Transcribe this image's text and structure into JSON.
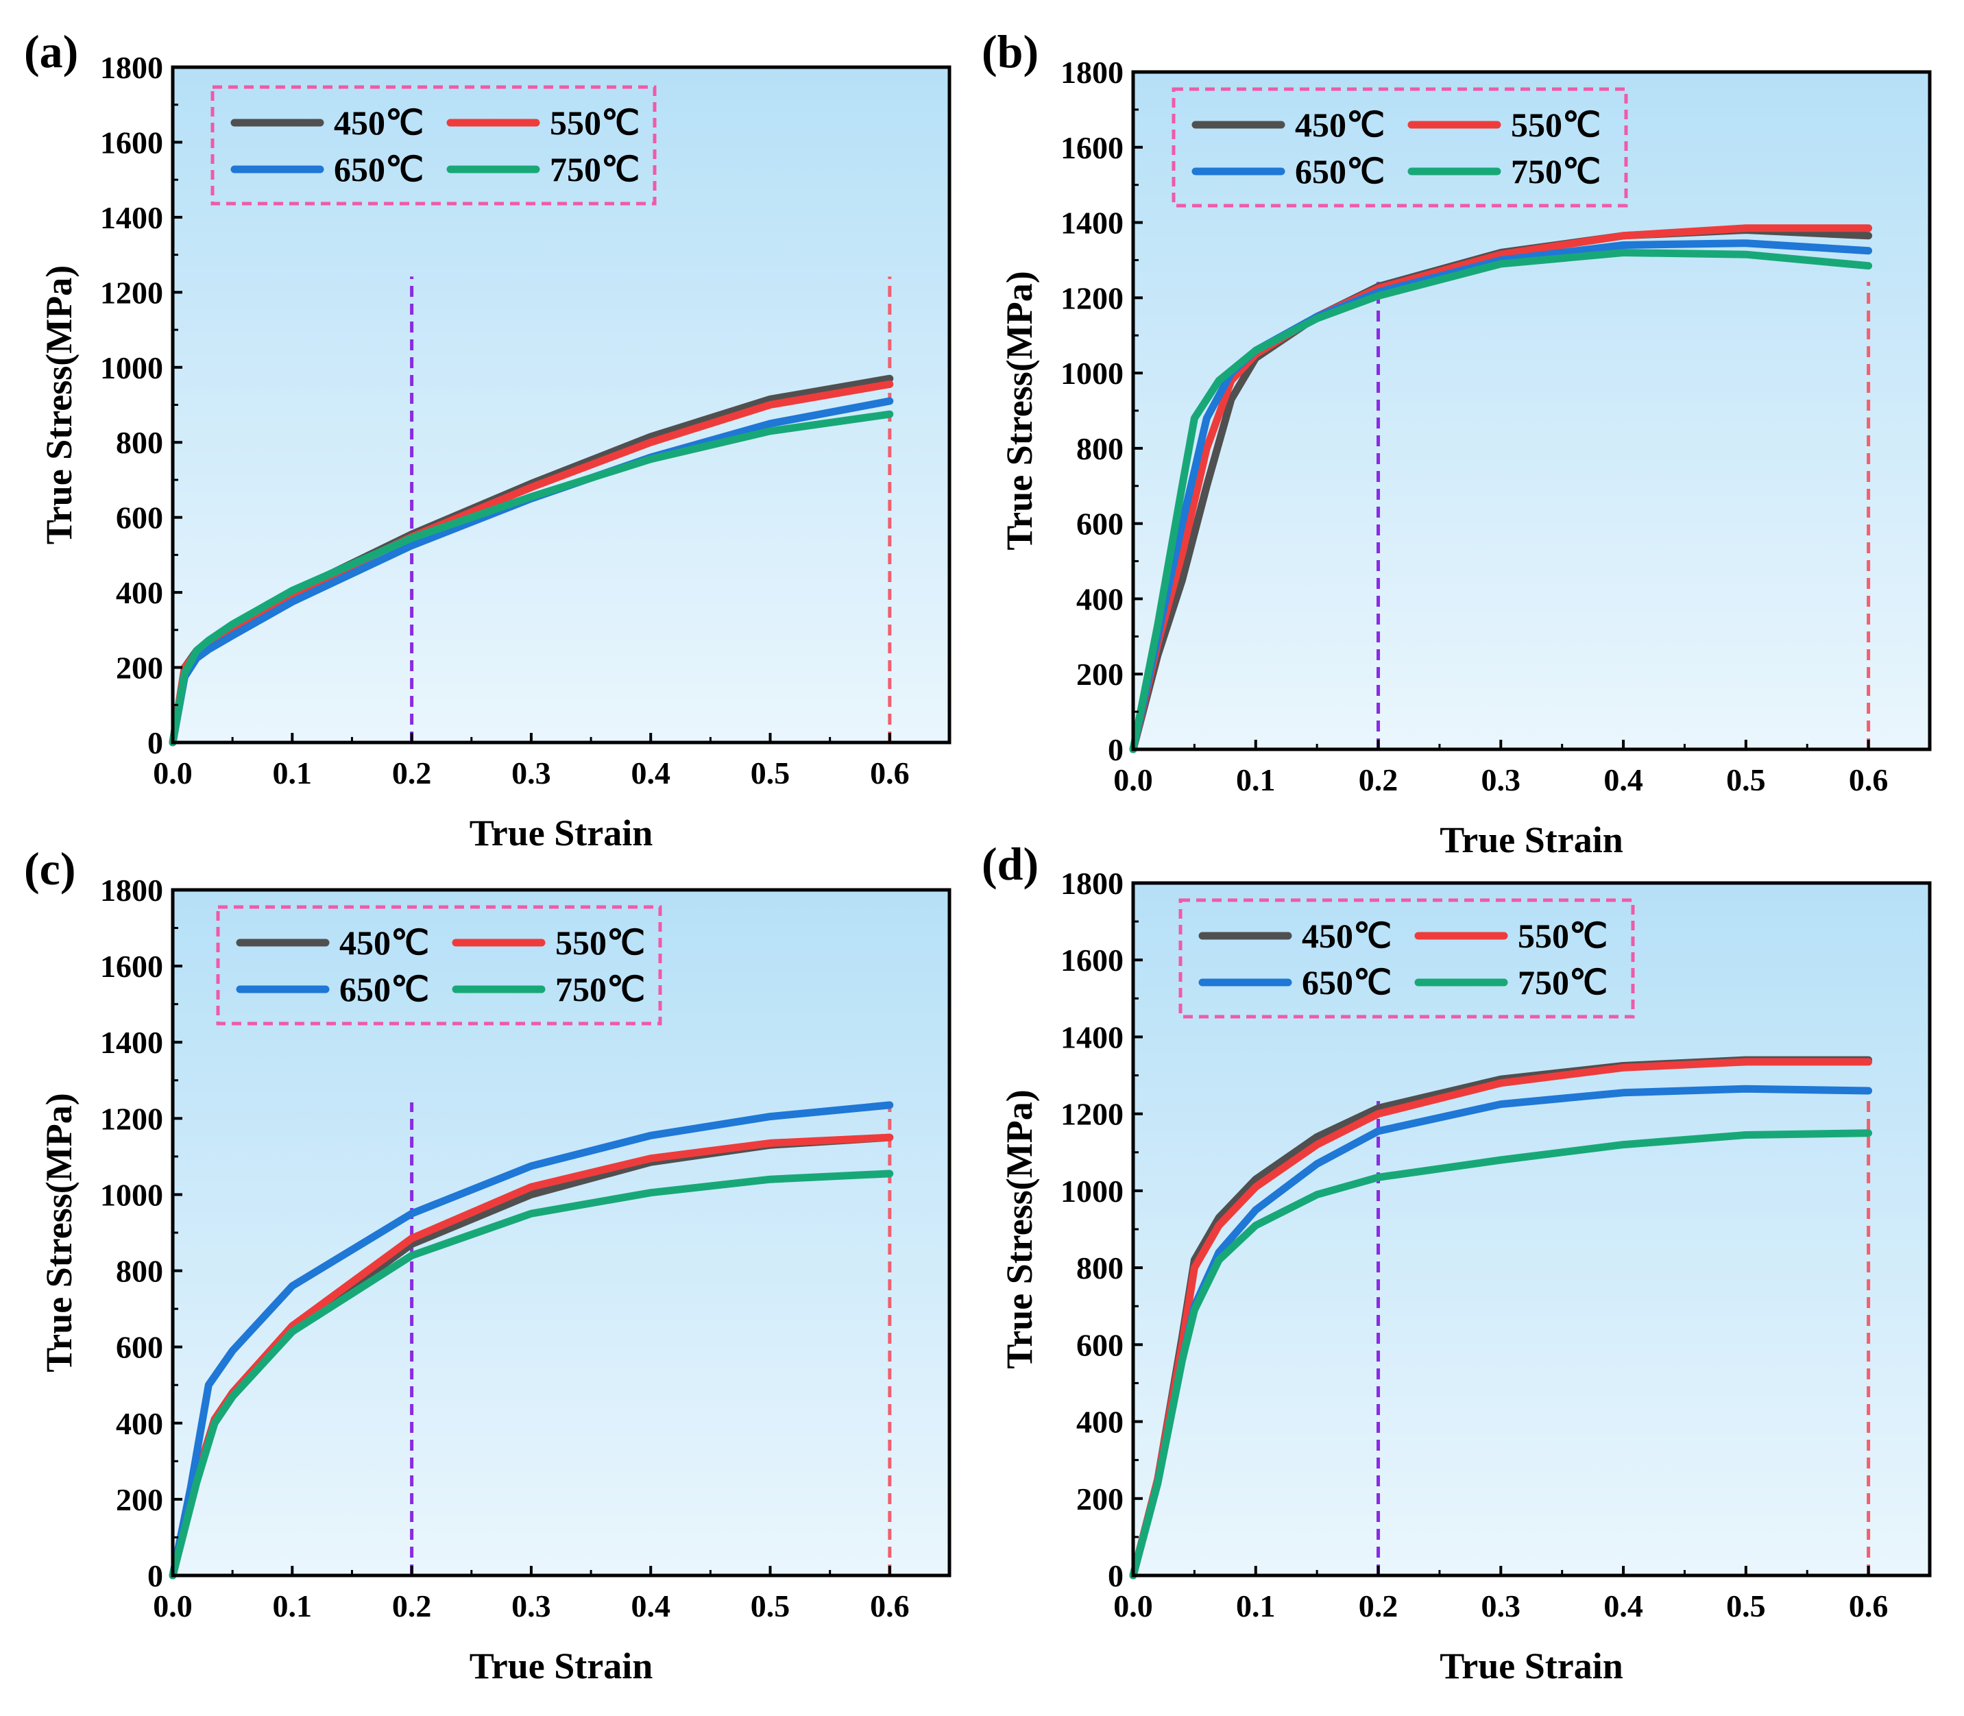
{
  "chart_data": [
    {
      "type": "line",
      "panel_label": "(a)",
      "xlabel": "True Strain",
      "ylabel": "True Stress(MPa)",
      "xlim": [
        0,
        0.65
      ],
      "ylim": [
        0,
        1800
      ],
      "xticks": [
        "0.0",
        "0.1",
        "0.2",
        "0.3",
        "0.4",
        "0.5",
        "0.6"
      ],
      "yticks": [
        "0",
        "200",
        "400",
        "600",
        "800",
        "1000",
        "1200",
        "1400",
        "1600",
        "1800"
      ],
      "reference_lines": [
        {
          "x": 0.2,
          "color": "#8a2be2"
        },
        {
          "x": 0.6,
          "color": "#f06070"
        }
      ],
      "series": [
        {
          "name": "450℃",
          "color": "#505050",
          "points": [
            [
              0,
              0
            ],
            [
              0.01,
              200
            ],
            [
              0.02,
              245
            ],
            [
              0.03,
              270
            ],
            [
              0.05,
              310
            ],
            [
              0.1,
              400
            ],
            [
              0.2,
              555
            ],
            [
              0.3,
              690
            ],
            [
              0.4,
              815
            ],
            [
              0.5,
              915
            ],
            [
              0.6,
              970
            ]
          ]
        },
        {
          "name": "550℃",
          "color": "#ee3c3c",
          "points": [
            [
              0,
              0
            ],
            [
              0.01,
              200
            ],
            [
              0.02,
              240
            ],
            [
              0.03,
              265
            ],
            [
              0.05,
              305
            ],
            [
              0.1,
              395
            ],
            [
              0.2,
              548
            ],
            [
              0.3,
              680
            ],
            [
              0.4,
              800
            ],
            [
              0.5,
              900
            ],
            [
              0.6,
              955
            ]
          ]
        },
        {
          "name": "650℃",
          "color": "#1f77d6",
          "points": [
            [
              0,
              0
            ],
            [
              0.01,
              175
            ],
            [
              0.02,
              225
            ],
            [
              0.03,
              248
            ],
            [
              0.05,
              285
            ],
            [
              0.1,
              375
            ],
            [
              0.2,
              525
            ],
            [
              0.3,
              650
            ],
            [
              0.4,
              760
            ],
            [
              0.5,
              850
            ],
            [
              0.6,
              910
            ]
          ]
        },
        {
          "name": "750℃",
          "color": "#18a878",
          "points": [
            [
              0,
              0
            ],
            [
              0.01,
              185
            ],
            [
              0.02,
              245
            ],
            [
              0.03,
              272
            ],
            [
              0.05,
              315
            ],
            [
              0.1,
              405
            ],
            [
              0.2,
              545
            ],
            [
              0.3,
              655
            ],
            [
              0.4,
              755
            ],
            [
              0.5,
              830
            ],
            [
              0.6,
              875
            ]
          ]
        }
      ]
    },
    {
      "type": "line",
      "panel_label": "(b)",
      "xlabel": "True Strain",
      "ylabel": "True Stress(MPa)",
      "xlim": [
        0,
        0.65
      ],
      "ylim": [
        0,
        1800
      ],
      "xticks": [
        "0.0",
        "0.1",
        "0.2",
        "0.3",
        "0.4",
        "0.5",
        "0.6"
      ],
      "yticks": [
        "0",
        "200",
        "400",
        "600",
        "800",
        "1000",
        "1200",
        "1400",
        "1600",
        "1800"
      ],
      "reference_lines": [
        {
          "x": 0.2,
          "color": "#8a2be2"
        },
        {
          "x": 0.6,
          "color": "#f06070"
        }
      ],
      "series": [
        {
          "name": "450℃",
          "color": "#505050",
          "points": [
            [
              0,
              0
            ],
            [
              0.02,
              250
            ],
            [
              0.04,
              450
            ],
            [
              0.06,
              700
            ],
            [
              0.08,
              930
            ],
            [
              0.1,
              1040
            ],
            [
              0.15,
              1150
            ],
            [
              0.2,
              1230
            ],
            [
              0.3,
              1320
            ],
            [
              0.4,
              1365
            ],
            [
              0.5,
              1380
            ],
            [
              0.6,
              1365
            ]
          ]
        },
        {
          "name": "550℃",
          "color": "#ee3c3c",
          "points": [
            [
              0,
              0
            ],
            [
              0.02,
              280
            ],
            [
              0.04,
              520
            ],
            [
              0.06,
              800
            ],
            [
              0.08,
              980
            ],
            [
              0.1,
              1050
            ],
            [
              0.15,
              1150
            ],
            [
              0.2,
              1225
            ],
            [
              0.3,
              1315
            ],
            [
              0.4,
              1365
            ],
            [
              0.5,
              1385
            ],
            [
              0.6,
              1385
            ]
          ]
        },
        {
          "name": "650℃",
          "color": "#1f77d6",
          "points": [
            [
              0,
              0
            ],
            [
              0.02,
              300
            ],
            [
              0.04,
              600
            ],
            [
              0.06,
              880
            ],
            [
              0.08,
              1000
            ],
            [
              0.1,
              1060
            ],
            [
              0.15,
              1150
            ],
            [
              0.2,
              1215
            ],
            [
              0.3,
              1300
            ],
            [
              0.4,
              1340
            ],
            [
              0.5,
              1345
            ],
            [
              0.6,
              1325
            ]
          ]
        },
        {
          "name": "750℃",
          "color": "#18a878",
          "points": [
            [
              0,
              0
            ],
            [
              0.02,
              330
            ],
            [
              0.04,
              700
            ],
            [
              0.05,
              880
            ],
            [
              0.07,
              980
            ],
            [
              0.1,
              1060
            ],
            [
              0.15,
              1145
            ],
            [
              0.2,
              1205
            ],
            [
              0.3,
              1290
            ],
            [
              0.4,
              1320
            ],
            [
              0.5,
              1315
            ],
            [
              0.6,
              1285
            ]
          ]
        }
      ]
    },
    {
      "type": "line",
      "panel_label": "(c)",
      "xlabel": "True Strain",
      "ylabel": "True Stress(MPa)",
      "xlim": [
        0,
        0.65
      ],
      "ylim": [
        0,
        1800
      ],
      "xticks": [
        "0.0",
        "0.1",
        "0.2",
        "0.3",
        "0.4",
        "0.5",
        "0.6"
      ],
      "yticks": [
        "0",
        "200",
        "400",
        "600",
        "800",
        "1000",
        "1200",
        "1400",
        "1600",
        "1800"
      ],
      "reference_lines": [
        {
          "x": 0.2,
          "color": "#8a2be2"
        },
        {
          "x": 0.6,
          "color": "#f06070"
        }
      ],
      "series": [
        {
          "name": "450℃",
          "color": "#505050",
          "points": [
            [
              0,
              0
            ],
            [
              0.02,
              250
            ],
            [
              0.035,
              400
            ],
            [
              0.05,
              470
            ],
            [
              0.1,
              640
            ],
            [
              0.2,
              870
            ],
            [
              0.3,
              1000
            ],
            [
              0.4,
              1085
            ],
            [
              0.5,
              1130
            ],
            [
              0.6,
              1150
            ]
          ]
        },
        {
          "name": "550℃",
          "color": "#ee3c3c",
          "points": [
            [
              0,
              0
            ],
            [
              0.02,
              260
            ],
            [
              0.035,
              410
            ],
            [
              0.05,
              480
            ],
            [
              0.1,
              655
            ],
            [
              0.2,
              885
            ],
            [
              0.3,
              1020
            ],
            [
              0.4,
              1095
            ],
            [
              0.5,
              1135
            ],
            [
              0.6,
              1150
            ]
          ]
        },
        {
          "name": "650℃",
          "color": "#1f77d6",
          "points": [
            [
              0,
              0
            ],
            [
              0.015,
              230
            ],
            [
              0.03,
              500
            ],
            [
              0.05,
              590
            ],
            [
              0.1,
              760
            ],
            [
              0.2,
              950
            ],
            [
              0.3,
              1075
            ],
            [
              0.4,
              1155
            ],
            [
              0.5,
              1205
            ],
            [
              0.6,
              1235
            ]
          ]
        },
        {
          "name": "750℃",
          "color": "#18a878",
          "points": [
            [
              0,
              0
            ],
            [
              0.02,
              245
            ],
            [
              0.035,
              400
            ],
            [
              0.05,
              470
            ],
            [
              0.1,
              640
            ],
            [
              0.2,
              840
            ],
            [
              0.3,
              950
            ],
            [
              0.4,
              1005
            ],
            [
              0.5,
              1040
            ],
            [
              0.6,
              1055
            ]
          ]
        }
      ]
    },
    {
      "type": "line",
      "panel_label": "(d)",
      "xlabel": "True Strain",
      "ylabel": "True Stress(MPa)",
      "xlim": [
        0,
        0.65
      ],
      "ylim": [
        0,
        1800
      ],
      "xticks": [
        "0.0",
        "0.1",
        "0.2",
        "0.3",
        "0.4",
        "0.5",
        "0.6"
      ],
      "yticks": [
        "0",
        "200",
        "400",
        "600",
        "800",
        "1000",
        "1200",
        "1400",
        "1600",
        "1800"
      ],
      "reference_lines": [
        {
          "x": 0.2,
          "color": "#8a2be2"
        },
        {
          "x": 0.6,
          "color": "#f06070"
        }
      ],
      "series": [
        {
          "name": "450℃",
          "color": "#505050",
          "points": [
            [
              0,
              0
            ],
            [
              0.02,
              250
            ],
            [
              0.04,
              620
            ],
            [
              0.05,
              820
            ],
            [
              0.07,
              930
            ],
            [
              0.1,
              1030
            ],
            [
              0.15,
              1140
            ],
            [
              0.2,
              1215
            ],
            [
              0.3,
              1290
            ],
            [
              0.4,
              1325
            ],
            [
              0.5,
              1340
            ],
            [
              0.6,
              1340
            ]
          ]
        },
        {
          "name": "550℃",
          "color": "#ee3c3c",
          "points": [
            [
              0,
              0
            ],
            [
              0.02,
              250
            ],
            [
              0.04,
              600
            ],
            [
              0.05,
              800
            ],
            [
              0.07,
              910
            ],
            [
              0.1,
              1010
            ],
            [
              0.15,
              1120
            ],
            [
              0.2,
              1200
            ],
            [
              0.3,
              1280
            ],
            [
              0.4,
              1320
            ],
            [
              0.5,
              1335
            ],
            [
              0.6,
              1335
            ]
          ]
        },
        {
          "name": "650℃",
          "color": "#1f77d6",
          "points": [
            [
              0,
              0
            ],
            [
              0.02,
              240
            ],
            [
              0.04,
              560
            ],
            [
              0.05,
              700
            ],
            [
              0.07,
              840
            ],
            [
              0.1,
              950
            ],
            [
              0.15,
              1070
            ],
            [
              0.2,
              1155
            ],
            [
              0.3,
              1225
            ],
            [
              0.4,
              1255
            ],
            [
              0.5,
              1265
            ],
            [
              0.6,
              1260
            ]
          ]
        },
        {
          "name": "750℃",
          "color": "#18a878",
          "points": [
            [
              0,
              0
            ],
            [
              0.02,
              240
            ],
            [
              0.04,
              560
            ],
            [
              0.05,
              690
            ],
            [
              0.07,
              820
            ],
            [
              0.1,
              910
            ],
            [
              0.15,
              990
            ],
            [
              0.2,
              1035
            ],
            [
              0.3,
              1080
            ],
            [
              0.4,
              1120
            ],
            [
              0.5,
              1145
            ],
            [
              0.6,
              1150
            ]
          ]
        }
      ]
    }
  ]
}
